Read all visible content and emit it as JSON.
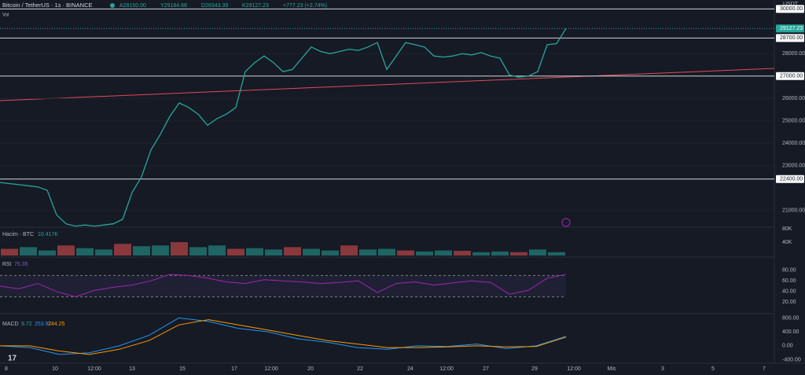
{
  "header": {
    "symbol": "Bitcoin / TetherUS · 1s · BINANCE",
    "ohlc": [
      "A28150.00",
      "Y29184.68",
      "D28343.39",
      "K29127.23",
      "+777.23 (+2.74%)"
    ]
  },
  "price_axis": {
    "unit": "USDT",
    "ylim": [
      20250,
      30400
    ],
    "ticks": [
      {
        "value": 28000,
        "label": "28000.00"
      },
      {
        "value": 26000,
        "label": "26000.00"
      },
      {
        "value": 25000,
        "label": "25000.00"
      },
      {
        "value": 24000,
        "label": "24000.00"
      },
      {
        "value": 23000,
        "label": "23000.00"
      },
      {
        "value": 21000,
        "label": "21000.00"
      }
    ],
    "levels": [
      {
        "value": 30000,
        "label": "30000.00"
      },
      {
        "value": 28700,
        "label": "28700.00"
      },
      {
        "value": 27000,
        "label": "27000.00"
      },
      {
        "value": 22400,
        "label": "22400.00"
      }
    ],
    "last": {
      "value": 29127.23,
      "label": "29127.23"
    }
  },
  "price": [
    22250,
    22200,
    22150,
    22100,
    22050,
    21900,
    20800,
    20400,
    20300,
    20350,
    20300,
    20350,
    20400,
    20600,
    21800,
    22500,
    23700,
    24400,
    25200,
    25800,
    25600,
    25300,
    24800,
    25100,
    25300,
    25600,
    27200,
    27600,
    27900,
    27600,
    27200,
    27300,
    27800,
    28300,
    28100,
    28000,
    28100,
    28200,
    28150,
    28300,
    28500,
    27300,
    27900,
    28500,
    28400,
    28300,
    27900,
    27850,
    27900,
    28000,
    27950,
    28050,
    27900,
    27800,
    27050,
    26950,
    27000,
    27200,
    28400,
    28450,
    29127.23
  ],
  "volume": {
    "label": "Hacim · BTC",
    "last": "10.417K",
    "ylim": [
      0,
      80
    ],
    "ticks": [
      {
        "value": 80,
        "label": "80K"
      },
      {
        "value": 40,
        "label": "40K"
      }
    ],
    "values": [
      20,
      25,
      15,
      30,
      22,
      18,
      35,
      28,
      30,
      40,
      25,
      30,
      20,
      22,
      18,
      25,
      20,
      15,
      30,
      18,
      20,
      15,
      12,
      15,
      14,
      10,
      12,
      10,
      18,
      10
    ]
  },
  "rsi": {
    "label": "RSI",
    "last": "75.35",
    "ylim": [
      0,
      100
    ],
    "band": [
      30,
      70
    ],
    "ticks": [
      {
        "value": 80,
        "label": "80.00"
      },
      {
        "value": 60,
        "label": "60.00"
      },
      {
        "value": 40,
        "label": "40.00"
      },
      {
        "value": 20,
        "label": "20.00"
      }
    ],
    "values": [
      50,
      45,
      55,
      40,
      30,
      42,
      48,
      52,
      60,
      72,
      70,
      65,
      58,
      55,
      62,
      60,
      58,
      55,
      57,
      60,
      38,
      55,
      58,
      52,
      56,
      60,
      57,
      35,
      42,
      65,
      72
    ]
  },
  "macd": {
    "label": "MACD",
    "readings": [
      "9.72",
      "253.97",
      "244.25"
    ],
    "ylim": [
      -500,
      900
    ],
    "ticks": [
      {
        "value": 800,
        "label": "800.00"
      },
      {
        "value": 400,
        "label": "400.00"
      },
      {
        "value": 0,
        "label": "0.00"
      },
      {
        "value": -400,
        "label": "-400.00"
      }
    ],
    "macd": [
      0,
      -50,
      -250,
      -200,
      0,
      300,
      800,
      700,
      500,
      400,
      200,
      100,
      -50,
      -100,
      0,
      -20,
      50,
      -80,
      0,
      270
    ],
    "signal": [
      0,
      0,
      -150,
      -250,
      -100,
      150,
      600,
      750,
      600,
      450,
      300,
      150,
      50,
      -50,
      -50,
      -30,
      0,
      -30,
      -20,
      250
    ]
  },
  "time_axis": [
    "8",
    "10",
    "12:00",
    "13",
    "15",
    "17",
    "12:00",
    "20",
    "22",
    "24",
    "12:00",
    "27",
    "29",
    "12:00",
    "Mis",
    "3",
    "5",
    "7"
  ]
}
